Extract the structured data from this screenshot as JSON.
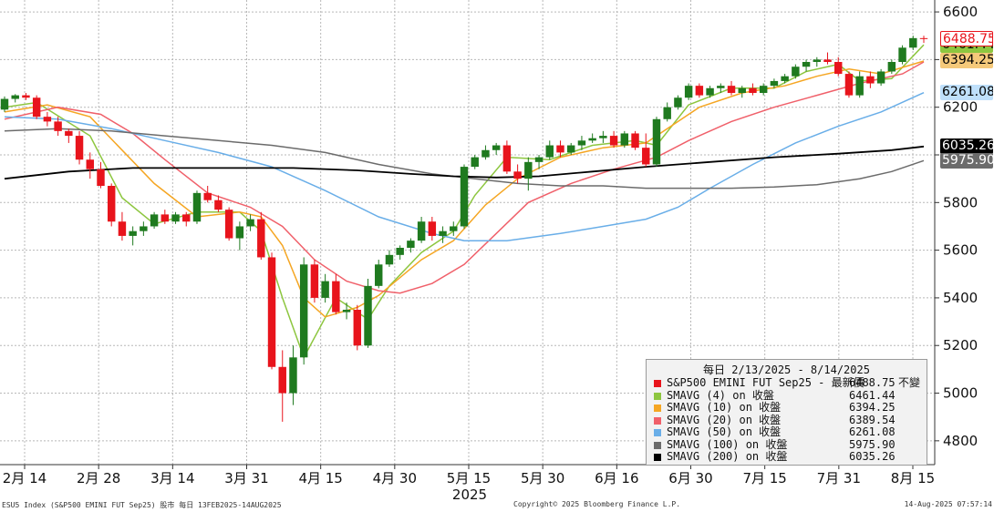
{
  "chart_data": {
    "type": "candlestick",
    "ylim": [
      4700,
      6650
    ],
    "yticks": [
      4800,
      5000,
      5200,
      5400,
      5600,
      5800,
      6000,
      6200,
      6400,
      6600
    ],
    "xticks": [
      "2月 14",
      "2月 28",
      "3月 14",
      "3月 31",
      "4月 15",
      "4月 30",
      "5月 15",
      "5月 30",
      "6月 16",
      "6月 30",
      "7月 15",
      "7月 31",
      "8月 15"
    ],
    "year_label": "2025",
    "colors": {
      "up": "#1f7a1f",
      "down": "#e8141c"
    },
    "ohlc": [
      {
        "o": 6190,
        "h": 6245,
        "l": 6180,
        "c": 6235
      },
      {
        "o": 6235,
        "h": 6255,
        "l": 6220,
        "c": 6250
      },
      {
        "o": 6250,
        "h": 6260,
        "l": 6230,
        "c": 6240
      },
      {
        "o": 6240,
        "h": 6250,
        "l": 6150,
        "c": 6160
      },
      {
        "o": 6160,
        "h": 6180,
        "l": 6120,
        "c": 6140
      },
      {
        "o": 6140,
        "h": 6160,
        "l": 6080,
        "c": 6100
      },
      {
        "o": 6100,
        "h": 6110,
        "l": 6050,
        "c": 6080
      },
      {
        "o": 6080,
        "h": 6100,
        "l": 5960,
        "c": 5980
      },
      {
        "o": 5980,
        "h": 6010,
        "l": 5900,
        "c": 5940
      },
      {
        "o": 5940,
        "h": 5970,
        "l": 5860,
        "c": 5870
      },
      {
        "o": 5870,
        "h": 5880,
        "l": 5700,
        "c": 5720
      },
      {
        "o": 5720,
        "h": 5760,
        "l": 5640,
        "c": 5660
      },
      {
        "o": 5660,
        "h": 5700,
        "l": 5620,
        "c": 5680
      },
      {
        "o": 5680,
        "h": 5720,
        "l": 5660,
        "c": 5700
      },
      {
        "o": 5700,
        "h": 5760,
        "l": 5690,
        "c": 5750
      },
      {
        "o": 5750,
        "h": 5770,
        "l": 5710,
        "c": 5720
      },
      {
        "o": 5720,
        "h": 5760,
        "l": 5710,
        "c": 5750
      },
      {
        "o": 5750,
        "h": 5760,
        "l": 5700,
        "c": 5720
      },
      {
        "o": 5720,
        "h": 5850,
        "l": 5710,
        "c": 5840
      },
      {
        "o": 5840,
        "h": 5870,
        "l": 5800,
        "c": 5810
      },
      {
        "o": 5810,
        "h": 5830,
        "l": 5760,
        "c": 5770
      },
      {
        "o": 5770,
        "h": 5780,
        "l": 5640,
        "c": 5650
      },
      {
        "o": 5650,
        "h": 5720,
        "l": 5600,
        "c": 5700
      },
      {
        "o": 5700,
        "h": 5750,
        "l": 5680,
        "c": 5730
      },
      {
        "o": 5730,
        "h": 5760,
        "l": 5560,
        "c": 5570
      },
      {
        "o": 5570,
        "h": 5590,
        "l": 5100,
        "c": 5110
      },
      {
        "o": 5110,
        "h": 5180,
        "l": 4880,
        "c": 5000
      },
      {
        "o": 5000,
        "h": 5200,
        "l": 4950,
        "c": 5150
      },
      {
        "o": 5150,
        "h": 5570,
        "l": 5120,
        "c": 5540
      },
      {
        "o": 5540,
        "h": 5560,
        "l": 5380,
        "c": 5400
      },
      {
        "o": 5400,
        "h": 5500,
        "l": 5380,
        "c": 5470
      },
      {
        "o": 5470,
        "h": 5500,
        "l": 5330,
        "c": 5340
      },
      {
        "o": 5340,
        "h": 5380,
        "l": 5310,
        "c": 5350
      },
      {
        "o": 5350,
        "h": 5370,
        "l": 5180,
        "c": 5200
      },
      {
        "o": 5200,
        "h": 5480,
        "l": 5190,
        "c": 5450
      },
      {
        "o": 5450,
        "h": 5560,
        "l": 5440,
        "c": 5540
      },
      {
        "o": 5540,
        "h": 5600,
        "l": 5530,
        "c": 5580
      },
      {
        "o": 5580,
        "h": 5620,
        "l": 5560,
        "c": 5610
      },
      {
        "o": 5610,
        "h": 5650,
        "l": 5590,
        "c": 5640
      },
      {
        "o": 5640,
        "h": 5740,
        "l": 5630,
        "c": 5720
      },
      {
        "o": 5720,
        "h": 5740,
        "l": 5640,
        "c": 5660
      },
      {
        "o": 5660,
        "h": 5700,
        "l": 5630,
        "c": 5680
      },
      {
        "o": 5680,
        "h": 5720,
        "l": 5660,
        "c": 5700
      },
      {
        "o": 5700,
        "h": 5960,
        "l": 5690,
        "c": 5950
      },
      {
        "o": 5950,
        "h": 6000,
        "l": 5940,
        "c": 5990
      },
      {
        "o": 5990,
        "h": 6040,
        "l": 5980,
        "c": 6020
      },
      {
        "o": 6020,
        "h": 6050,
        "l": 6000,
        "c": 6040
      },
      {
        "o": 6040,
        "h": 6060,
        "l": 5920,
        "c": 5930
      },
      {
        "o": 5930,
        "h": 5960,
        "l": 5880,
        "c": 5900
      },
      {
        "o": 5900,
        "h": 5990,
        "l": 5850,
        "c": 5970
      },
      {
        "o": 5970,
        "h": 6000,
        "l": 5940,
        "c": 5990
      },
      {
        "o": 5990,
        "h": 6060,
        "l": 5980,
        "c": 6040
      },
      {
        "o": 6040,
        "h": 6060,
        "l": 5990,
        "c": 6010
      },
      {
        "o": 6010,
        "h": 6050,
        "l": 6000,
        "c": 6040
      },
      {
        "o": 6040,
        "h": 6080,
        "l": 6020,
        "c": 6060
      },
      {
        "o": 6060,
        "h": 6090,
        "l": 6050,
        "c": 6070
      },
      {
        "o": 6070,
        "h": 6100,
        "l": 6050,
        "c": 6080
      },
      {
        "o": 6080,
        "h": 6100,
        "l": 6030,
        "c": 6040
      },
      {
        "o": 6040,
        "h": 6100,
        "l": 6030,
        "c": 6090
      },
      {
        "o": 6090,
        "h": 6100,
        "l": 6020,
        "c": 6030
      },
      {
        "o": 6030,
        "h": 6090,
        "l": 5950,
        "c": 5960
      },
      {
        "o": 5960,
        "h": 6160,
        "l": 5950,
        "c": 6150
      },
      {
        "o": 6150,
        "h": 6220,
        "l": 6140,
        "c": 6200
      },
      {
        "o": 6200,
        "h": 6250,
        "l": 6190,
        "c": 6240
      },
      {
        "o": 6240,
        "h": 6300,
        "l": 6230,
        "c": 6290
      },
      {
        "o": 6290,
        "h": 6300,
        "l": 6240,
        "c": 6250
      },
      {
        "o": 6250,
        "h": 6290,
        "l": 6240,
        "c": 6280
      },
      {
        "o": 6280,
        "h": 6300,
        "l": 6260,
        "c": 6290
      },
      {
        "o": 6290,
        "h": 6310,
        "l": 6250,
        "c": 6260
      },
      {
        "o": 6260,
        "h": 6290,
        "l": 6240,
        "c": 6280
      },
      {
        "o": 6280,
        "h": 6300,
        "l": 6250,
        "c": 6260
      },
      {
        "o": 6260,
        "h": 6300,
        "l": 6250,
        "c": 6290
      },
      {
        "o": 6290,
        "h": 6320,
        "l": 6280,
        "c": 6310
      },
      {
        "o": 6310,
        "h": 6340,
        "l": 6300,
        "c": 6330
      },
      {
        "o": 6330,
        "h": 6380,
        "l": 6320,
        "c": 6370
      },
      {
        "o": 6370,
        "h": 6400,
        "l": 6350,
        "c": 6390
      },
      {
        "o": 6390,
        "h": 6410,
        "l": 6370,
        "c": 6400
      },
      {
        "o": 6400,
        "h": 6430,
        "l": 6380,
        "c": 6390
      },
      {
        "o": 6390,
        "h": 6410,
        "l": 6330,
        "c": 6340
      },
      {
        "o": 6340,
        "h": 6350,
        "l": 6240,
        "c": 6250
      },
      {
        "o": 6250,
        "h": 6350,
        "l": 6240,
        "c": 6330
      },
      {
        "o": 6330,
        "h": 6350,
        "l": 6280,
        "c": 6300
      },
      {
        "o": 6300,
        "h": 6360,
        "l": 6290,
        "c": 6350
      },
      {
        "o": 6350,
        "h": 6400,
        "l": 6340,
        "c": 6390
      },
      {
        "o": 6390,
        "h": 6460,
        "l": 6380,
        "c": 6450
      },
      {
        "o": 6450,
        "h": 6500,
        "l": 6440,
        "c": 6490
      },
      {
        "o": 6490,
        "h": 6500,
        "l": 6470,
        "c": 6488.75
      }
    ],
    "moving_averages": [
      {
        "name": "SMAVG (4)  on 收盤",
        "color": "#8dc63f",
        "points": [
          [
            0,
            6200
          ],
          [
            3,
            6220
          ],
          [
            8,
            6080
          ],
          [
            11,
            5820
          ],
          [
            14,
            5710
          ],
          [
            18,
            5760
          ],
          [
            22,
            5760
          ],
          [
            24,
            5680
          ],
          [
            26,
            5400
          ],
          [
            28,
            5150
          ],
          [
            31,
            5400
          ],
          [
            34,
            5310
          ],
          [
            36,
            5450
          ],
          [
            39,
            5590
          ],
          [
            42,
            5680
          ],
          [
            44,
            5830
          ],
          [
            47,
            5990
          ],
          [
            51,
            5980
          ],
          [
            55,
            6040
          ],
          [
            59,
            6060
          ],
          [
            61,
            6040
          ],
          [
            64,
            6210
          ],
          [
            68,
            6280
          ],
          [
            72,
            6280
          ],
          [
            75,
            6350
          ],
          [
            78,
            6380
          ],
          [
            80,
            6310
          ],
          [
            83,
            6320
          ],
          [
            86,
            6462
          ]
        ]
      },
      {
        "name": "SMAVG (10)  on 收盤",
        "color": "#f5a623",
        "points": [
          [
            0,
            6180
          ],
          [
            4,
            6210
          ],
          [
            8,
            6160
          ],
          [
            11,
            6020
          ],
          [
            14,
            5880
          ],
          [
            18,
            5740
          ],
          [
            22,
            5760
          ],
          [
            24,
            5740
          ],
          [
            26,
            5620
          ],
          [
            28,
            5400
          ],
          [
            30,
            5320
          ],
          [
            33,
            5360
          ],
          [
            35,
            5410
          ],
          [
            39,
            5560
          ],
          [
            42,
            5640
          ],
          [
            45,
            5790
          ],
          [
            48,
            5900
          ],
          [
            52,
            5990
          ],
          [
            56,
            6030
          ],
          [
            60,
            6050
          ],
          [
            62,
            6110
          ],
          [
            65,
            6200
          ],
          [
            69,
            6260
          ],
          [
            73,
            6290
          ],
          [
            76,
            6330
          ],
          [
            79,
            6360
          ],
          [
            82,
            6340
          ],
          [
            86,
            6394
          ]
        ]
      },
      {
        "name": "SMAVG (20)  on 收盤",
        "color": "#f0606a",
        "points": [
          [
            0,
            6150
          ],
          [
            5,
            6200
          ],
          [
            9,
            6170
          ],
          [
            12,
            6090
          ],
          [
            15,
            5980
          ],
          [
            19,
            5840
          ],
          [
            23,
            5780
          ],
          [
            26,
            5700
          ],
          [
            29,
            5560
          ],
          [
            32,
            5470
          ],
          [
            35,
            5430
          ],
          [
            37,
            5420
          ],
          [
            40,
            5460
          ],
          [
            43,
            5540
          ],
          [
            46,
            5670
          ],
          [
            49,
            5800
          ],
          [
            53,
            5880
          ],
          [
            57,
            5940
          ],
          [
            61,
            5990
          ],
          [
            64,
            6060
          ],
          [
            68,
            6140
          ],
          [
            72,
            6200
          ],
          [
            76,
            6250
          ],
          [
            80,
            6300
          ],
          [
            84,
            6340
          ],
          [
            86,
            6390
          ]
        ]
      },
      {
        "name": "SMAVG (50)  on 收盤",
        "color": "#69aee8",
        "points": [
          [
            0,
            6160
          ],
          [
            5,
            6150
          ],
          [
            10,
            6110
          ],
          [
            15,
            6060
          ],
          [
            20,
            6010
          ],
          [
            25,
            5950
          ],
          [
            30,
            5850
          ],
          [
            35,
            5740
          ],
          [
            40,
            5670
          ],
          [
            43,
            5640
          ],
          [
            47,
            5640
          ],
          [
            52,
            5670
          ],
          [
            56,
            5700
          ],
          [
            60,
            5730
          ],
          [
            63,
            5780
          ],
          [
            66,
            5860
          ],
          [
            70,
            5960
          ],
          [
            74,
            6050
          ],
          [
            78,
            6120
          ],
          [
            82,
            6180
          ],
          [
            86,
            6261
          ]
        ]
      },
      {
        "name": "SMAVG (100)  on 收盤",
        "color": "#6b6b6b",
        "points": [
          [
            0,
            6100
          ],
          [
            5,
            6110
          ],
          [
            10,
            6100
          ],
          [
            15,
            6080
          ],
          [
            20,
            6060
          ],
          [
            25,
            6040
          ],
          [
            30,
            6010
          ],
          [
            35,
            5960
          ],
          [
            40,
            5920
          ],
          [
            44,
            5900
          ],
          [
            48,
            5880
          ],
          [
            52,
            5870
          ],
          [
            56,
            5870
          ],
          [
            60,
            5860
          ],
          [
            64,
            5860
          ],
          [
            68,
            5860
          ],
          [
            72,
            5865
          ],
          [
            76,
            5875
          ],
          [
            80,
            5900
          ],
          [
            83,
            5930
          ],
          [
            86,
            5976
          ]
        ]
      },
      {
        "name": "SMAVG (200)  on 收盤",
        "color": "#000000",
        "points": [
          [
            0,
            5900
          ],
          [
            6,
            5930
          ],
          [
            12,
            5945
          ],
          [
            20,
            5945
          ],
          [
            27,
            5945
          ],
          [
            33,
            5935
          ],
          [
            38,
            5920
          ],
          [
            42,
            5910
          ],
          [
            46,
            5905
          ],
          [
            50,
            5910
          ],
          [
            55,
            5930
          ],
          [
            60,
            5950
          ],
          [
            66,
            5970
          ],
          [
            72,
            5990
          ],
          [
            78,
            6005
          ],
          [
            83,
            6020
          ],
          [
            86,
            6035
          ]
        ]
      }
    ]
  },
  "legend": {
    "title": "每日 2/13/2025 - 8/14/2025",
    "rows": [
      {
        "label": "S&P500 EMINI FUT Sep25 - 最新價",
        "value": "6488.75",
        "extra": "不變",
        "color": "#e8141c"
      },
      {
        "label": "SMAVG (4)  on 收盤",
        "value": "6461.44",
        "color": "#8dc63f"
      },
      {
        "label": "SMAVG (10)  on 收盤",
        "value": "6394.25",
        "color": "#f5a623"
      },
      {
        "label": "SMAVG (20)  on 收盤",
        "value": "6389.54",
        "color": "#f0606a"
      },
      {
        "label": "SMAVG (50)  on 收盤",
        "value": "6261.08",
        "color": "#69aee8"
      },
      {
        "label": "SMAVG (100)  on 收盤",
        "value": "5975.90",
        "color": "#6b6b6b"
      },
      {
        "label": "SMAVG (200)  on 收盤",
        "value": "6035.26",
        "color": "#000000"
      }
    ]
  },
  "price_labels": [
    {
      "text": "6461.44",
      "value": 6461.44,
      "bg": "#8dc63f",
      "fg": "#000000"
    },
    {
      "text": "6488.75",
      "value": 6488.75,
      "bg": "#ffffff",
      "fg": "#e8141c",
      "border": "#e8141c"
    },
    {
      "text": "6394.25",
      "value": 6394.25,
      "bg": "#f5c97a",
      "fg": "#000000"
    },
    {
      "text": "6261.08",
      "value": 6261.08,
      "bg": "#bfe0fb",
      "fg": "#000000"
    },
    {
      "text": "6035.26",
      "value": 6035.26,
      "bg": "#000000",
      "fg": "#ffffff"
    },
    {
      "text": "5975.90",
      "value": 5975.9,
      "bg": "#6b6b6b",
      "fg": "#ffffff"
    }
  ],
  "footer": {
    "left": "ESU5 Index (S&P500 EMINI FUT  Sep25) 股市  每日 13FEB2025-14AUG2025",
    "center": "Copyright© 2025 Bloomberg Finance L.P.",
    "right": "14-Aug-2025 07:57:14"
  }
}
